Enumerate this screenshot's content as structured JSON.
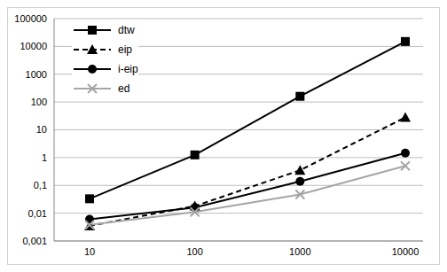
{
  "chart_data": {
    "type": "line",
    "categories": [
      "10",
      "100",
      "1000",
      "10000"
    ],
    "series": [
      {
        "name": "dtw",
        "color": "#000000",
        "marker": "square",
        "line_style": "solid",
        "values": [
          0.033,
          1.25,
          160,
          15000
        ]
      },
      {
        "name": "eip",
        "color": "#000000",
        "marker": "triangle",
        "line_style": "dashed",
        "values": [
          0.0035,
          0.018,
          0.35,
          28
        ]
      },
      {
        "name": "i-eip",
        "color": "#000000",
        "marker": "circle",
        "line_style": "solid",
        "values": [
          0.006,
          0.016,
          0.14,
          1.45
        ]
      },
      {
        "name": "ed",
        "color": "#a6a6a6",
        "marker": "x",
        "line_style": "solid",
        "values": [
          0.0038,
          0.011,
          0.047,
          0.5
        ]
      }
    ],
    "ylim": [
      0.001,
      100000
    ],
    "yticks": [
      {
        "value": 0.001,
        "label": "0,001"
      },
      {
        "value": 0.01,
        "label": "0,01"
      },
      {
        "value": 0.1,
        "label": "0,1"
      },
      1,
      10,
      100,
      1000,
      10000,
      100000
    ],
    "log": "y",
    "grid": true,
    "legend": "upper left"
  }
}
